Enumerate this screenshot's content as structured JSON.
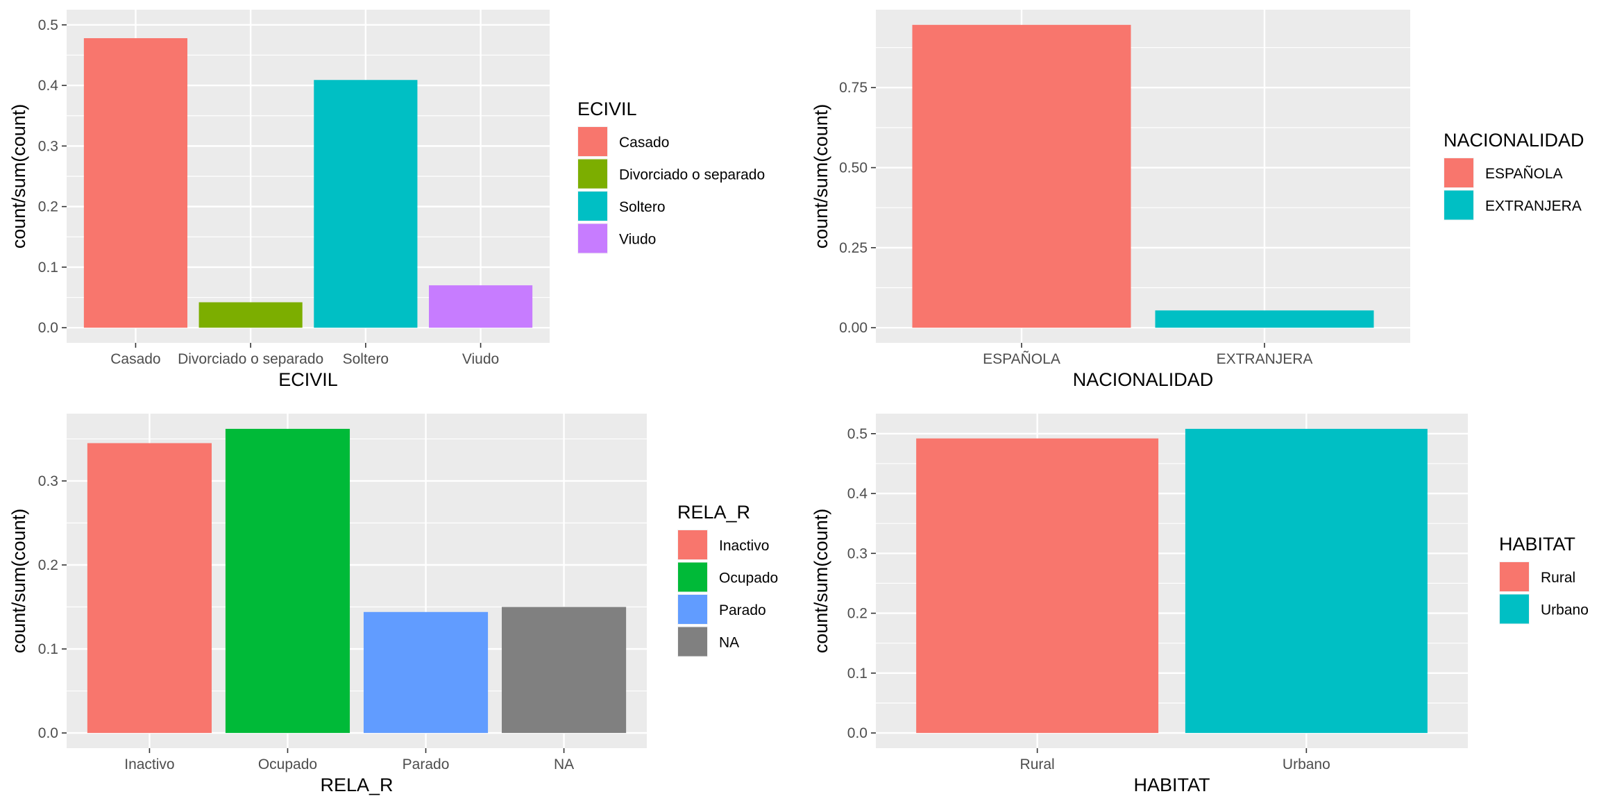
{
  "chart_data": [
    {
      "type": "bar",
      "xlabel": "ECIVIL",
      "ylabel": "count/sum(count)",
      "categories": [
        "Casado",
        "Divorciado o separado",
        "Soltero",
        "Viudo"
      ],
      "values": [
        0.478,
        0.042,
        0.409,
        0.07
      ],
      "colors": [
        "#F8766D",
        "#7CAE00",
        "#00BFC4",
        "#C77CFF"
      ],
      "ylim": [
        0,
        0.5
      ],
      "yticks": [
        0.0,
        0.1,
        0.2,
        0.3,
        0.4,
        0.5
      ],
      "ytick_labels": [
        "0.0",
        "0.1",
        "0.2",
        "0.3",
        "0.4",
        "0.5"
      ],
      "legend": {
        "title": "ECIVIL",
        "entries": [
          "Casado",
          "Divorciado o separado",
          "Soltero",
          "Viudo"
        ],
        "placement": "right"
      },
      "grid": true
    },
    {
      "type": "bar",
      "xlabel": "NACIONALIDAD",
      "ylabel": "count/sum(count)",
      "categories": [
        "ESPAÑOLA",
        "EXTRANJERA"
      ],
      "values": [
        0.946,
        0.054
      ],
      "colors": [
        "#F8766D",
        "#00BFC4"
      ],
      "ylim": [
        0,
        0.946
      ],
      "yticks": [
        0.0,
        0.25,
        0.5,
        0.75
      ],
      "ytick_labels": [
        "0.00",
        "0.25",
        "0.50",
        "0.75"
      ],
      "legend": {
        "title": "NACIONALIDAD",
        "entries": [
          "ESPAÑOLA",
          "EXTRANJERA"
        ],
        "placement": "right"
      },
      "grid": true
    },
    {
      "type": "bar",
      "xlabel": "RELA_R",
      "ylabel": "count/sum(count)",
      "categories": [
        "Inactivo",
        "Ocupado",
        "Parado",
        "NA"
      ],
      "values": [
        0.345,
        0.362,
        0.144,
        0.15
      ],
      "colors": [
        "#F8766D",
        "#00BA38",
        "#619CFF",
        "#808080"
      ],
      "ylim": [
        0,
        0.362
      ],
      "yticks": [
        0.0,
        0.1,
        0.2,
        0.3
      ],
      "ytick_labels": [
        "0.0",
        "0.1",
        "0.2",
        "0.3"
      ],
      "legend": {
        "title": "RELA_R",
        "entries": [
          "Inactivo",
          "Ocupado",
          "Parado",
          "NA"
        ],
        "placement": "right"
      },
      "grid": true
    },
    {
      "type": "bar",
      "xlabel": "HABITAT",
      "ylabel": "count/sum(count)",
      "categories": [
        "Rural",
        "Urbano"
      ],
      "values": [
        0.492,
        0.508
      ],
      "colors": [
        "#F8766D",
        "#00BFC4"
      ],
      "ylim": [
        0,
        0.508
      ],
      "yticks": [
        0.0,
        0.1,
        0.2,
        0.3,
        0.4,
        0.5
      ],
      "ytick_labels": [
        "0.0",
        "0.1",
        "0.2",
        "0.3",
        "0.4",
        "0.5"
      ],
      "legend": {
        "title": "HABITAT",
        "entries": [
          "Rural",
          "Urbano"
        ],
        "placement": "right"
      },
      "grid": true
    }
  ]
}
